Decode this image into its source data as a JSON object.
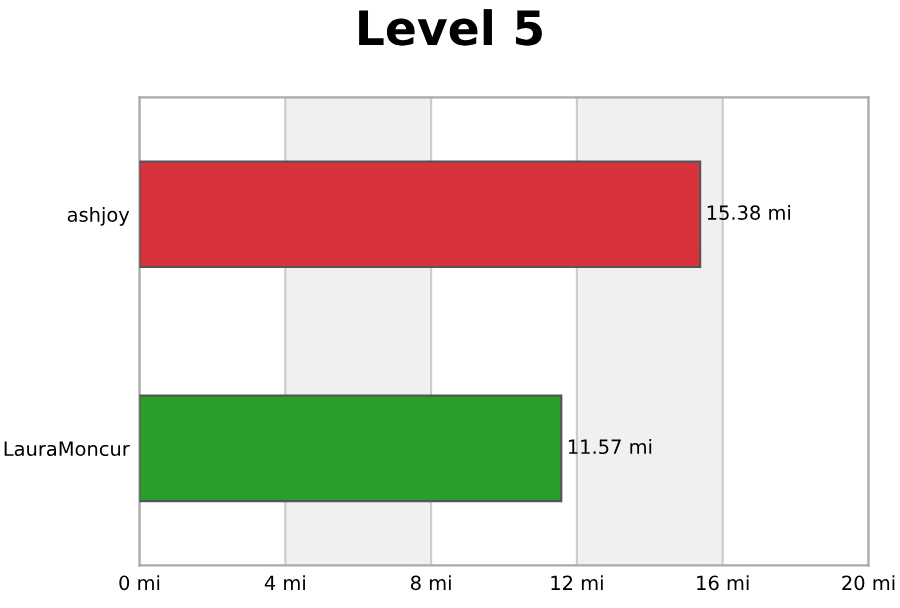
{
  "chart_data": {
    "type": "bar",
    "title": "Level 5",
    "orientation": "horizontal",
    "categories": [
      "ashjoy",
      "LauraMoncur"
    ],
    "values": [
      15.38,
      11.57
    ],
    "colors": [
      "#d8323a",
      "#2a9e2a"
    ],
    "value_labels": [
      "15.38 mi",
      "11.57 mi"
    ],
    "xlim": [
      0,
      20
    ],
    "xticks": [
      {
        "value": 0,
        "label": "0 mi"
      },
      {
        "value": 4,
        "label": "4 mi"
      },
      {
        "value": 8,
        "label": "8 mi"
      },
      {
        "value": 12,
        "label": "12 mi"
      },
      {
        "value": 16,
        "label": "16 mi"
      },
      {
        "value": 20,
        "label": "20 mi"
      }
    ],
    "bands": [
      {
        "axis": "x",
        "from": 4,
        "to": 8,
        "color": "#f0f0f0"
      },
      {
        "axis": "x",
        "from": 12,
        "to": 16,
        "color": "#f0f0f0"
      }
    ],
    "grid": "x",
    "legend": false
  }
}
